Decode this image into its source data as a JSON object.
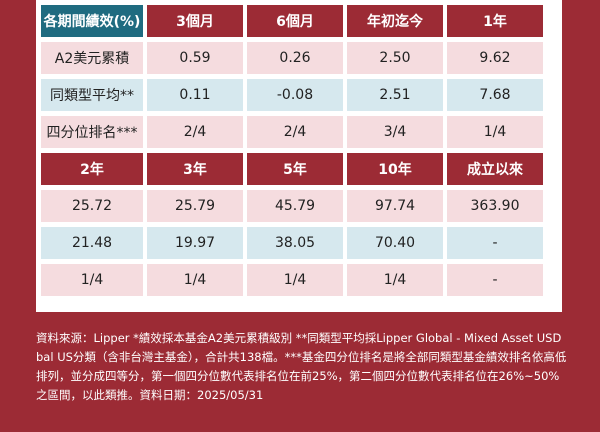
{
  "table_top": {
    "headers": [
      "各期間績效(%)",
      "3個月",
      "6個月",
      "年初迄今",
      "1年"
    ],
    "rows": [
      [
        "A2美元累積",
        "0.59",
        "0.26",
        "2.50",
        "9.62"
      ],
      [
        "同類型平均**",
        "0.11",
        "-0.08",
        "2.51",
        "7.68"
      ],
      [
        "四分位排名***",
        "2/4",
        "2/4",
        "3/4",
        "1/4"
      ]
    ]
  },
  "table_bottom": {
    "headers": [
      "2年",
      "3年",
      "5年",
      "10年",
      "成立以來"
    ],
    "rows": [
      [
        "25.72",
        "25.79",
        "45.79",
        "97.74",
        "363.90"
      ],
      [
        "21.48",
        "19.97",
        "38.05",
        "70.40",
        "-"
      ],
      [
        "1/4",
        "1/4",
        "1/4",
        "1/4",
        "-"
      ]
    ]
  },
  "footnote": "資料來源：Lipper *績效採本基金A2美元累積級別 **同類型平均採Lipper Global - Mixed Asset USD bal US分類（含非台灣主基金），合計共138檔。***基金四分位排名是將全部同類型基金績效排名依高低排列，並分成四等分，第一個四分位數代表排名位在前25%，第二個四分位數代表排名位在26%~50%之區間，以此類推。資料日期：2025/05/31",
  "colors": {
    "background_red": "#9c2b35",
    "header_teal": "#1f6b80",
    "row_pink": "#f5dcdf",
    "row_blue": "#d6e8ee"
  }
}
